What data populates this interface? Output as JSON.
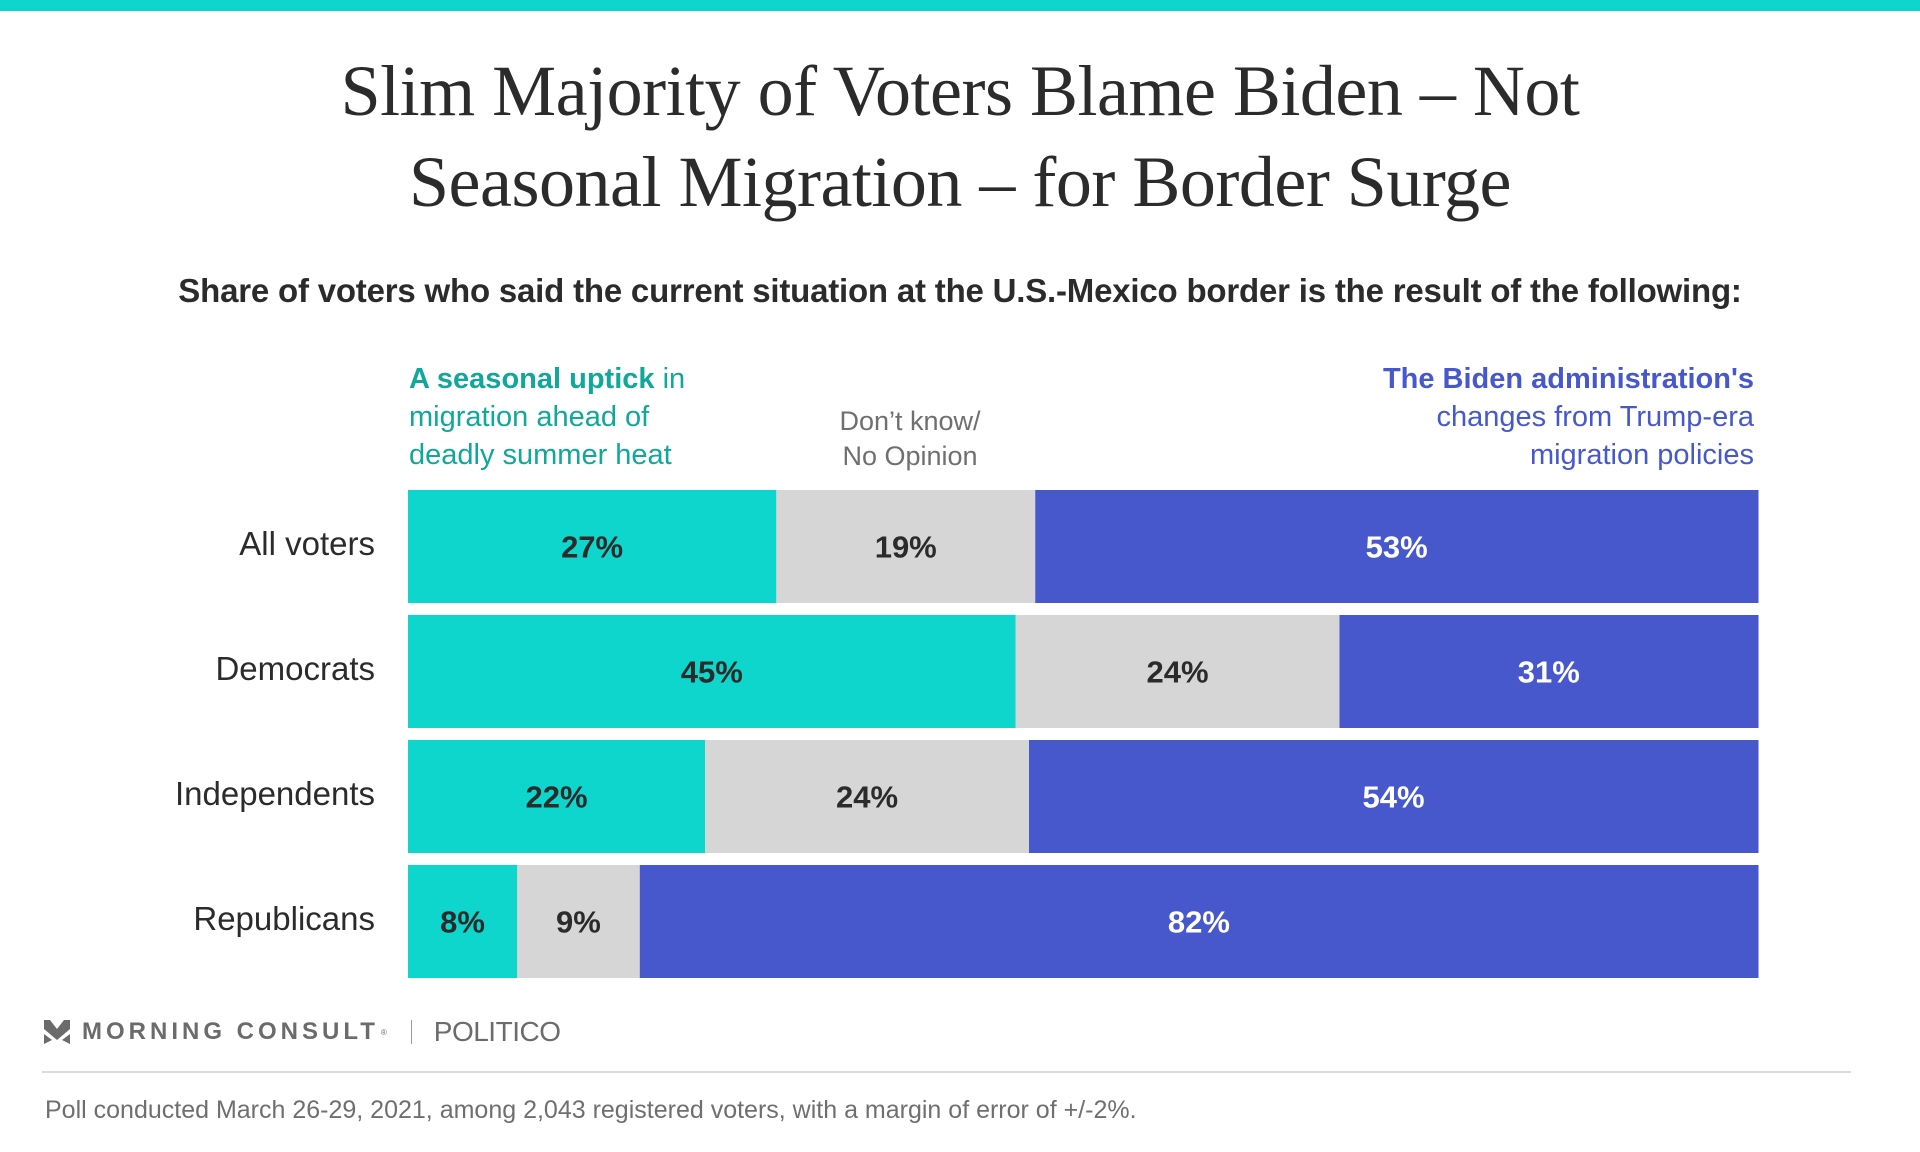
{
  "header": {
    "title_line1": "Slim Majority of Voters Blame Biden – Not",
    "title_line2": "Seasonal Migration – for Border Surge",
    "subtitle": "Share of voters who said the current situation at the U.S.-Mexico border is the result of the following:"
  },
  "legend": {
    "seasonal_bold": "A seasonal uptick",
    "seasonal_rest1": " in",
    "seasonal_line2": "migration ahead of",
    "seasonal_line3": "deadly summer heat",
    "dontknow_line1": "Don’t know/",
    "dontknow_line2": "No Opinion",
    "biden_bold": "The Biden administration's",
    "biden_line2": "changes from Trump-era",
    "biden_line3": "migration policies"
  },
  "colors": {
    "seasonal": "#0fd6cc",
    "seasonal_text": "#11a79a",
    "dontknow": "#d6d6d6",
    "biden": "#4758cc",
    "label_dark": "#2b2b2b",
    "label_light": "#ffffff"
  },
  "chart_data": {
    "type": "bar",
    "orientation": "horizontal-stacked",
    "title": "Slim Majority of Voters Blame Biden – Not Seasonal Migration – for Border Surge",
    "subtitle": "Share of voters who said the current situation at the U.S.-Mexico border is the result of the following:",
    "categories": [
      "All voters",
      "Democrats",
      "Independents",
      "Republicans"
    ],
    "series": [
      {
        "name": "A seasonal uptick in migration ahead of deadly summer heat",
        "key": "seasonal",
        "values": [
          27,
          45,
          22,
          8
        ]
      },
      {
        "name": "Don’t know/ No Opinion",
        "key": "dontknow",
        "values": [
          19,
          24,
          24,
          9
        ]
      },
      {
        "name": "The Biden administration's changes from Trump-era migration policies",
        "key": "biden",
        "values": [
          53,
          31,
          54,
          82
        ]
      }
    ],
    "unit": "%",
    "xlabel": "",
    "ylabel": "",
    "legend_placement": "top",
    "grid": false
  },
  "footer": {
    "brand": "MORNING CONSULT",
    "brand_reg": "®",
    "partner": "POLITICO",
    "note": "Poll conducted March 26-29, 2021, among 2,043 registered voters, with a margin of error of +/-2%."
  }
}
